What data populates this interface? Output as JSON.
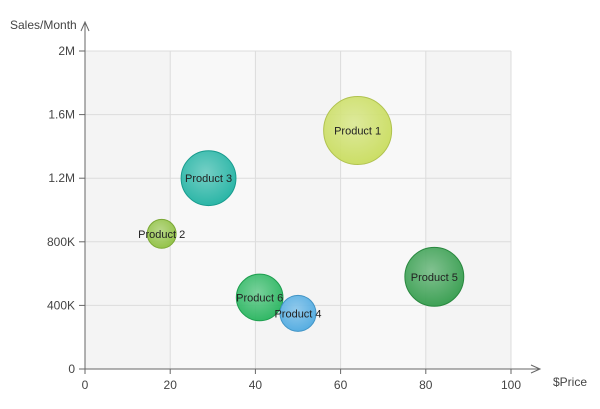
{
  "chart_data": {
    "type": "bubble",
    "title": "",
    "xlabel": "$Price",
    "ylabel": "Sales/Month",
    "xlim": [
      0,
      100
    ],
    "ylim": [
      0,
      2000000
    ],
    "x_ticks": [
      {
        "value": 0,
        "label": "0"
      },
      {
        "value": 20,
        "label": "20"
      },
      {
        "value": 40,
        "label": "40"
      },
      {
        "value": 60,
        "label": "60"
      },
      {
        "value": 80,
        "label": "80"
      },
      {
        "value": 100,
        "label": "100"
      }
    ],
    "y_ticks": [
      {
        "value": 0,
        "label": "0"
      },
      {
        "value": 400000,
        "label": "400K"
      },
      {
        "value": 800000,
        "label": "800K"
      },
      {
        "value": 1200000,
        "label": "1.2M"
      },
      {
        "value": 1600000,
        "label": "1.6M"
      },
      {
        "value": 2000000,
        "label": "2M"
      }
    ],
    "grid": true,
    "legend": "none",
    "points": [
      {
        "label": "Product 1",
        "x": 64,
        "y": 1500000,
        "size": 100,
        "color": "#c8dc5a"
      },
      {
        "label": "Product 2",
        "x": 18,
        "y": 850000,
        "size": 18,
        "color": "#8cbf3c"
      },
      {
        "label": "Product 3",
        "x": 29,
        "y": 1200000,
        "size": 65,
        "color": "#1ab0a0"
      },
      {
        "label": "Product 4",
        "x": 50,
        "y": 350000,
        "size": 28,
        "color": "#4aa8e0"
      },
      {
        "label": "Product 5",
        "x": 82,
        "y": 580000,
        "size": 75,
        "color": "#2f9a48"
      },
      {
        "label": "Product 6",
        "x": 41,
        "y": 450000,
        "size": 47,
        "color": "#22b35a"
      }
    ]
  }
}
